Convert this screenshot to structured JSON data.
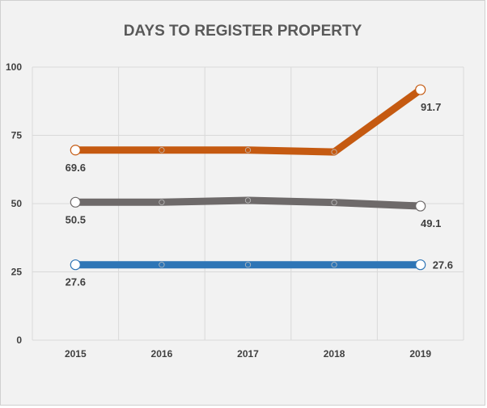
{
  "chart_data": {
    "type": "line",
    "title": "DAYS TO REGISTER PROPERTY",
    "xlabel": "",
    "ylabel": "",
    "categories": [
      "2015",
      "2016",
      "2017",
      "2018",
      "2019"
    ],
    "ylim": [
      0,
      100
    ],
    "yticks": [
      "0",
      "25",
      "50",
      "75",
      "100"
    ],
    "grid": true,
    "legend": "none",
    "series": [
      {
        "values": [
          69.6,
          69.6,
          69.6,
          68.9,
          91.7
        ],
        "color": "#c55a11",
        "labels": [
          "69.6",
          "",
          "",
          "",
          "91.7"
        ]
      },
      {
        "values": [
          50.5,
          50.5,
          51.2,
          50.4,
          49.1
        ],
        "color": "#6e6a6a",
        "labels": [
          "50.5",
          "",
          "",
          "",
          "49.1"
        ]
      },
      {
        "values": [
          27.6,
          27.6,
          27.6,
          27.6,
          27.6
        ],
        "color": "#2e75b6",
        "labels": [
          "27.6",
          "",
          "",
          "",
          "27.6"
        ]
      }
    ]
  }
}
